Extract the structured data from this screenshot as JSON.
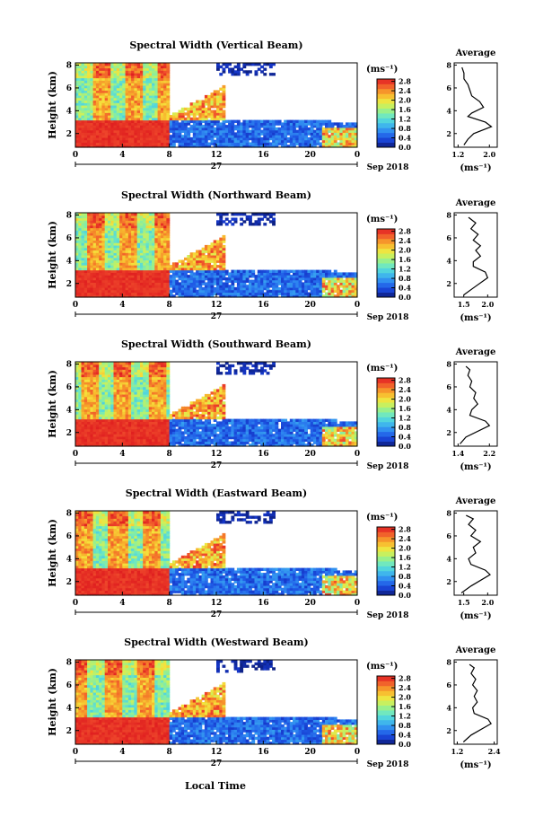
{
  "figure": {
    "xlabel": "Local Time",
    "date_label": "Sep 2018",
    "day_label": "27",
    "unit_label": "(ms⁻¹)",
    "colorbar_ticks": [
      "0.0",
      "0.4",
      "0.8",
      "1.2",
      "1.6",
      "2.0",
      "2.4",
      "2.8"
    ],
    "colormap": [
      "#0b1a6e",
      "#1536c8",
      "#1f5ae6",
      "#2e86f0",
      "#3bb0ee",
      "#4fd3e0",
      "#6fe8c0",
      "#9bf08a",
      "#cdf05a",
      "#f5e23c",
      "#f7b52d",
      "#f5862a",
      "#ef4a2c",
      "#e02020"
    ],
    "average_title": "Average"
  },
  "chart_data": [
    {
      "type": "heatmap",
      "title": "Spectral Width (Vertical Beam)",
      "ylabel": "Height (km)",
      "x_ticks": [
        "0",
        "4",
        "8",
        "12",
        "16",
        "20",
        "0"
      ],
      "xlim": [
        0,
        24
      ],
      "y_ticks": [
        "2",
        "4",
        "6",
        "8"
      ],
      "ylim": [
        0.8,
        8.2
      ],
      "color_range": [
        0.0,
        2.9
      ],
      "profile": {
        "type": "line",
        "title": "Average",
        "xlabel": "(ms⁻¹)",
        "x_ticks": [
          "1.2",
          "2.0"
        ],
        "xlim": [
          1.1,
          2.2
        ],
        "y_ticks": [
          "2",
          "4",
          "6",
          "8"
        ],
        "ylim": [
          0.8,
          8.2
        ],
        "points": [
          [
            1.35,
            1.0
          ],
          [
            1.45,
            1.5
          ],
          [
            1.6,
            2.0
          ],
          [
            2.05,
            2.6
          ],
          [
            1.9,
            3.0
          ],
          [
            1.45,
            3.5
          ],
          [
            1.55,
            3.8
          ],
          [
            1.85,
            4.3
          ],
          [
            1.75,
            4.8
          ],
          [
            1.55,
            5.3
          ],
          [
            1.5,
            5.8
          ],
          [
            1.45,
            6.3
          ],
          [
            1.35,
            6.8
          ],
          [
            1.35,
            7.3
          ],
          [
            1.3,
            7.8
          ]
        ]
      }
    },
    {
      "type": "heatmap",
      "title": "Spectral Width (Northward Beam)",
      "ylabel": "Height (km)",
      "x_ticks": [
        "0",
        "4",
        "8",
        "12",
        "16",
        "20",
        "0"
      ],
      "xlim": [
        0,
        24
      ],
      "y_ticks": [
        "2",
        "4",
        "6",
        "8"
      ],
      "ylim": [
        0.8,
        8.2
      ],
      "color_range": [
        0.0,
        2.9
      ],
      "profile": {
        "type": "line",
        "title": "Average",
        "xlabel": "(ms⁻¹)",
        "x_ticks": [
          "1.5",
          "2.0"
        ],
        "xlim": [
          1.3,
          2.2
        ],
        "y_ticks": [
          "2",
          "4",
          "6",
          "8"
        ],
        "ylim": [
          0.8,
          8.2
        ],
        "points": [
          [
            1.5,
            1.0
          ],
          [
            1.7,
            1.6
          ],
          [
            2.0,
            2.5
          ],
          [
            1.95,
            3.0
          ],
          [
            1.7,
            3.5
          ],
          [
            1.7,
            3.9
          ],
          [
            1.85,
            4.4
          ],
          [
            1.75,
            4.9
          ],
          [
            1.85,
            5.3
          ],
          [
            1.7,
            5.8
          ],
          [
            1.8,
            6.3
          ],
          [
            1.65,
            6.8
          ],
          [
            1.75,
            7.3
          ],
          [
            1.6,
            7.8
          ]
        ]
      }
    },
    {
      "type": "heatmap",
      "title": "Spectral Width (Southward Beam)",
      "ylabel": "Height (km)",
      "x_ticks": [
        "0",
        "4",
        "8",
        "12",
        "16",
        "20",
        "0"
      ],
      "xlim": [
        0,
        24
      ],
      "y_ticks": [
        "2",
        "4",
        "6",
        "8"
      ],
      "ylim": [
        0.8,
        8.2
      ],
      "color_range": [
        0.0,
        2.9
      ],
      "profile": {
        "type": "line",
        "title": "Average",
        "xlabel": "(ms⁻¹)",
        "x_ticks": [
          "1.4",
          "2.2"
        ],
        "xlim": [
          1.3,
          2.4
        ],
        "y_ticks": [
          "2",
          "4",
          "6",
          "8"
        ],
        "ylim": [
          0.8,
          8.2
        ],
        "points": [
          [
            1.45,
            1.0
          ],
          [
            1.6,
            1.6
          ],
          [
            2.2,
            2.6
          ],
          [
            2.1,
            3.0
          ],
          [
            1.7,
            3.5
          ],
          [
            1.75,
            4.0
          ],
          [
            1.9,
            4.5
          ],
          [
            1.8,
            5.0
          ],
          [
            1.85,
            5.5
          ],
          [
            1.7,
            6.0
          ],
          [
            1.75,
            6.5
          ],
          [
            1.65,
            7.0
          ],
          [
            1.7,
            7.5
          ],
          [
            1.6,
            7.8
          ]
        ]
      }
    },
    {
      "type": "heatmap",
      "title": "Spectral Width (Eastward Beam)",
      "ylabel": "Height (km)",
      "x_ticks": [
        "0",
        "4",
        "8",
        "12",
        "16",
        "20",
        "0"
      ],
      "xlim": [
        0,
        24
      ],
      "y_ticks": [
        "2",
        "4",
        "6",
        "8"
      ],
      "ylim": [
        0.8,
        8.2
      ],
      "color_range": [
        0.0,
        2.9
      ],
      "profile": {
        "type": "line",
        "title": "Average",
        "xlabel": "(ms⁻¹)",
        "x_ticks": [
          "1.5",
          "2.0"
        ],
        "xlim": [
          1.3,
          2.2
        ],
        "y_ticks": [
          "2",
          "4",
          "6",
          "8"
        ],
        "ylim": [
          0.8,
          8.2
        ],
        "points": [
          [
            1.45,
            1.0
          ],
          [
            1.65,
            1.6
          ],
          [
            2.05,
            2.6
          ],
          [
            1.95,
            3.0
          ],
          [
            1.65,
            3.5
          ],
          [
            1.6,
            4.0
          ],
          [
            1.75,
            4.5
          ],
          [
            1.7,
            5.0
          ],
          [
            1.85,
            5.5
          ],
          [
            1.65,
            6.0
          ],
          [
            1.75,
            6.5
          ],
          [
            1.6,
            7.0
          ],
          [
            1.7,
            7.5
          ],
          [
            1.55,
            7.8
          ]
        ]
      }
    },
    {
      "type": "heatmap",
      "title": "Spectral Width (Westward Beam)",
      "ylabel": "Height (km)",
      "x_ticks": [
        "0",
        "4",
        "8",
        "12",
        "16",
        "20",
        "0"
      ],
      "xlim": [
        0,
        24
      ],
      "y_ticks": [
        "2",
        "4",
        "6",
        "8"
      ],
      "ylim": [
        0.8,
        8.2
      ],
      "color_range": [
        0.0,
        2.9
      ],
      "profile": {
        "type": "line",
        "title": "Average",
        "xlabel": "(ms⁻¹)",
        "x_ticks": [
          "1.2",
          "2.4"
        ],
        "xlim": [
          1.1,
          2.5
        ],
        "y_ticks": [
          "2",
          "4",
          "6",
          "8"
        ],
        "ylim": [
          0.8,
          8.2
        ],
        "points": [
          [
            1.4,
            1.0
          ],
          [
            1.65,
            1.6
          ],
          [
            2.3,
            2.6
          ],
          [
            2.2,
            3.0
          ],
          [
            1.75,
            3.5
          ],
          [
            1.7,
            4.0
          ],
          [
            1.85,
            4.5
          ],
          [
            1.75,
            5.0
          ],
          [
            1.85,
            5.5
          ],
          [
            1.7,
            6.0
          ],
          [
            1.8,
            6.5
          ],
          [
            1.65,
            7.0
          ],
          [
            1.75,
            7.5
          ],
          [
            1.6,
            7.8
          ]
        ]
      }
    }
  ]
}
